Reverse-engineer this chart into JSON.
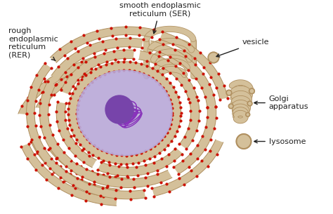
{
  "bg_color": "#ffffff",
  "cell_fill": "#c8bde8",
  "cell_alpha": 0.35,
  "nucleus_fill": "#b8a8d8",
  "nucleus_alpha": 0.9,
  "nucleolus_fill": "#7744aa",
  "chromatin_color": "#8833bb",
  "rer_fill": "#d4c09a",
  "rer_border": "#b09060",
  "rer_dot": "#cc1100",
  "ser_fill": "#d4c09a",
  "ser_border": "#b09060",
  "golgi_fill": "#d4c09a",
  "golgi_border": "#b09060",
  "lysosome_fill": "#d4c09a",
  "lysosome_border": "#b09060",
  "text_color": "#222222",
  "labels": {
    "rer": "rough\nendoplasmic\nreticulum\n(RER)",
    "ser": "smooth endoplasmic\nreticulum (SER)",
    "vesicle": "vesicle",
    "golgi": "Golgi\napparatus",
    "lysosome": "lysosome"
  }
}
